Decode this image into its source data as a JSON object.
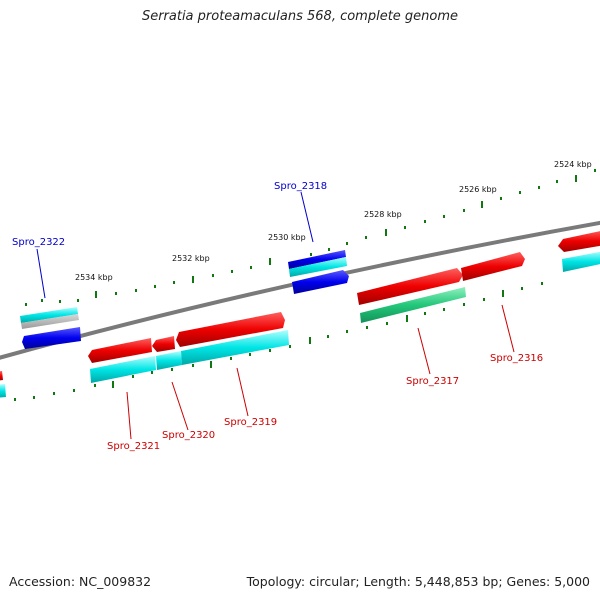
{
  "title": "Serratia proteamaculans 568, complete genome",
  "accession": "Accession: NC_009832",
  "topology": "Topology: circular; Length: 5,448,853 bp; Genes: 5,000",
  "ticks": {
    "t2524": "2524 kbp",
    "t2526": "2526 kbp",
    "t2528": "2528 kbp",
    "t2530": "2530 kbp",
    "t2532": "2532 kbp",
    "t2534": "2534 kbp"
  },
  "genes": {
    "g2316": "Spro_2316",
    "g2317": "Spro_2317",
    "g2318": "Spro_2318",
    "g2319": "Spro_2319",
    "g2320": "Spro_2320",
    "g2321": "Spro_2321",
    "g2322": "Spro_2322"
  },
  "colors": {
    "forward_strand": "#ee0000",
    "reverse_strand": "#0000ee",
    "backbone": "#7a7a7a",
    "cds_feature": "#00e5e5",
    "rna_feature": "#22c77a",
    "tick_marks": "#117711",
    "forward_label": "#cc0000",
    "reverse_label": "#0000cc"
  },
  "icons": {
    "forward_gene": "right-arrow-shape",
    "reverse_gene": "left-arrow-shape"
  }
}
